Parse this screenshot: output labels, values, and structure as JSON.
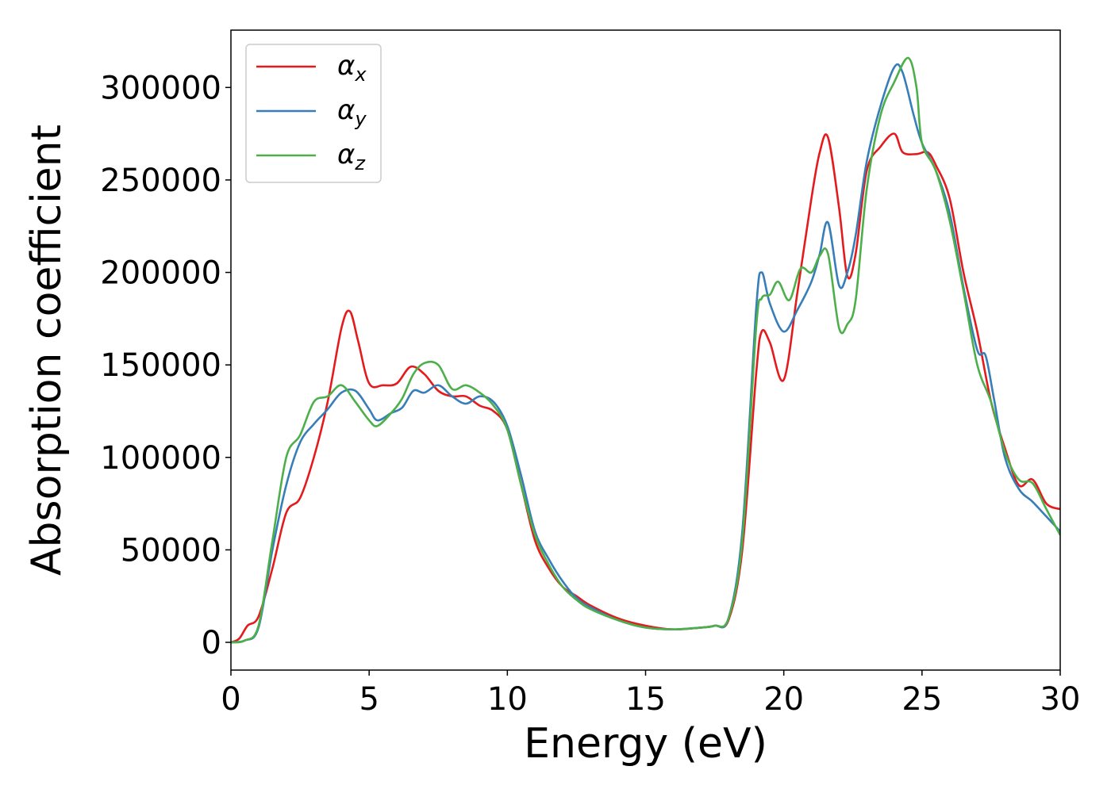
{
  "chart_data": {
    "type": "line",
    "xlabel": "Energy (eV)",
    "ylabel": "Absorption coefficient",
    "xlim": [
      0,
      30
    ],
    "ylim": [
      -15000,
      331000
    ],
    "xticks": [
      0,
      5,
      10,
      15,
      20,
      25,
      30
    ],
    "yticks": [
      0,
      50000,
      100000,
      150000,
      200000,
      250000,
      300000
    ],
    "xtick_labels": [
      "0",
      "5",
      "10",
      "15",
      "20",
      "25",
      "30"
    ],
    "ytick_labels": [
      "0",
      "50000",
      "100000",
      "150000",
      "200000",
      "250000",
      "300000"
    ],
    "grid": false,
    "legend_position": "top-left",
    "series": [
      {
        "name": "α_x",
        "symbol": "α",
        "subscript": "x",
        "color": "#e41a1c",
        "points": [
          [
            0,
            0
          ],
          [
            0.3,
            2000
          ],
          [
            0.6,
            9000
          ],
          [
            1,
            14000
          ],
          [
            1.5,
            40000
          ],
          [
            2,
            70000
          ],
          [
            2.5,
            78000
          ],
          [
            3,
            100000
          ],
          [
            3.5,
            130000
          ],
          [
            4,
            170000
          ],
          [
            4.3,
            179000
          ],
          [
            4.6,
            163000
          ],
          [
            5,
            140000
          ],
          [
            5.5,
            139000
          ],
          [
            6,
            140000
          ],
          [
            6.5,
            149000
          ],
          [
            7,
            145000
          ],
          [
            7.5,
            136000
          ],
          [
            8,
            133000
          ],
          [
            8.5,
            133000
          ],
          [
            9,
            128000
          ],
          [
            9.5,
            125000
          ],
          [
            10,
            115000
          ],
          [
            10.5,
            85000
          ],
          [
            11,
            55000
          ],
          [
            11.5,
            40000
          ],
          [
            12,
            30000
          ],
          [
            12.5,
            25000
          ],
          [
            13,
            20000
          ],
          [
            14,
            13000
          ],
          [
            15,
            9000
          ],
          [
            16,
            7000
          ],
          [
            17,
            8000
          ],
          [
            17.5,
            9000
          ],
          [
            18,
            12000
          ],
          [
            18.5,
            50000
          ],
          [
            19,
            145000
          ],
          [
            19.2,
            168000
          ],
          [
            19.5,
            162000
          ],
          [
            20,
            142000
          ],
          [
            20.5,
            190000
          ],
          [
            21,
            240000
          ],
          [
            21.3,
            265000
          ],
          [
            21.6,
            273000
          ],
          [
            22,
            235000
          ],
          [
            22.3,
            198000
          ],
          [
            22.6,
            210000
          ],
          [
            23,
            255000
          ],
          [
            23.5,
            268000
          ],
          [
            24,
            275000
          ],
          [
            24.3,
            265000
          ],
          [
            24.8,
            264000
          ],
          [
            25.2,
            265000
          ],
          [
            25.5,
            258000
          ],
          [
            26,
            240000
          ],
          [
            26.5,
            200000
          ],
          [
            27,
            168000
          ],
          [
            27.5,
            130000
          ],
          [
            28,
            105000
          ],
          [
            28.5,
            85000
          ],
          [
            29,
            88000
          ],
          [
            29.5,
            75000
          ],
          [
            30,
            72000
          ]
        ]
      },
      {
        "name": "α_y",
        "symbol": "α",
        "subscript": "y",
        "color": "#377eb8",
        "points": [
          [
            0,
            0
          ],
          [
            0.5,
            1000
          ],
          [
            1,
            8000
          ],
          [
            1.5,
            50000
          ],
          [
            2,
            85000
          ],
          [
            2.5,
            108000
          ],
          [
            3,
            118000
          ],
          [
            3.5,
            126000
          ],
          [
            4,
            135000
          ],
          [
            4.5,
            136000
          ],
          [
            5,
            126000
          ],
          [
            5.3,
            120000
          ],
          [
            5.8,
            124000
          ],
          [
            6.2,
            127000
          ],
          [
            6.6,
            136000
          ],
          [
            7,
            135000
          ],
          [
            7.5,
            139000
          ],
          [
            8,
            133000
          ],
          [
            8.5,
            129000
          ],
          [
            9,
            133000
          ],
          [
            9.5,
            130000
          ],
          [
            10,
            117000
          ],
          [
            10.5,
            90000
          ],
          [
            11,
            60000
          ],
          [
            11.5,
            45000
          ],
          [
            12,
            33000
          ],
          [
            12.5,
            24000
          ],
          [
            13,
            19000
          ],
          [
            14,
            12000
          ],
          [
            15,
            8000
          ],
          [
            16,
            7000
          ],
          [
            17,
            8000
          ],
          [
            17.5,
            9000
          ],
          [
            18,
            13000
          ],
          [
            18.5,
            60000
          ],
          [
            19,
            180000
          ],
          [
            19.2,
            200000
          ],
          [
            19.5,
            183000
          ],
          [
            20,
            168000
          ],
          [
            20.5,
            180000
          ],
          [
            21,
            195000
          ],
          [
            21.3,
            210000
          ],
          [
            21.6,
            227000
          ],
          [
            22,
            193000
          ],
          [
            22.3,
            200000
          ],
          [
            22.6,
            220000
          ],
          [
            23,
            260000
          ],
          [
            23.5,
            290000
          ],
          [
            24,
            311000
          ],
          [
            24.3,
            308000
          ],
          [
            24.7,
            285000
          ],
          [
            25,
            270000
          ],
          [
            25.5,
            255000
          ],
          [
            26,
            232000
          ],
          [
            26.5,
            192000
          ],
          [
            27,
            158000
          ],
          [
            27.3,
            155000
          ],
          [
            27.6,
            132000
          ],
          [
            28,
            100000
          ],
          [
            28.5,
            83000
          ],
          [
            29,
            76000
          ],
          [
            29.5,
            68000
          ],
          [
            30,
            60000
          ]
        ]
      },
      {
        "name": "α_z",
        "symbol": "α",
        "subscript": "z",
        "color": "#4daf4a",
        "points": [
          [
            0,
            0
          ],
          [
            0.5,
            1000
          ],
          [
            1,
            9000
          ],
          [
            1.5,
            55000
          ],
          [
            2,
            100000
          ],
          [
            2.5,
            112000
          ],
          [
            3,
            130000
          ],
          [
            3.5,
            133000
          ],
          [
            4,
            139000
          ],
          [
            4.5,
            130000
          ],
          [
            5,
            120000
          ],
          [
            5.3,
            117000
          ],
          [
            5.8,
            124000
          ],
          [
            6.2,
            132000
          ],
          [
            6.6,
            145000
          ],
          [
            7,
            151000
          ],
          [
            7.5,
            150000
          ],
          [
            8,
            137000
          ],
          [
            8.5,
            139000
          ],
          [
            9,
            135000
          ],
          [
            9.5,
            128000
          ],
          [
            10,
            115000
          ],
          [
            10.5,
            85000
          ],
          [
            11,
            58000
          ],
          [
            11.5,
            42000
          ],
          [
            12,
            30000
          ],
          [
            12.5,
            23000
          ],
          [
            13,
            18000
          ],
          [
            14,
            12000
          ],
          [
            15,
            8000
          ],
          [
            16,
            7000
          ],
          [
            17,
            8000
          ],
          [
            17.5,
            9000
          ],
          [
            18,
            13000
          ],
          [
            18.5,
            55000
          ],
          [
            19,
            170000
          ],
          [
            19.2,
            186000
          ],
          [
            19.5,
            188000
          ],
          [
            19.8,
            195000
          ],
          [
            20.2,
            185000
          ],
          [
            20.6,
            202000
          ],
          [
            21,
            200000
          ],
          [
            21.3,
            209000
          ],
          [
            21.6,
            210000
          ],
          [
            22,
            170000
          ],
          [
            22.3,
            172000
          ],
          [
            22.6,
            185000
          ],
          [
            23,
            245000
          ],
          [
            23.5,
            285000
          ],
          [
            24,
            303000
          ],
          [
            24.5,
            316000
          ],
          [
            24.8,
            300000
          ],
          [
            25,
            270000
          ],
          [
            25.5,
            255000
          ],
          [
            26,
            228000
          ],
          [
            26.5,
            190000
          ],
          [
            27,
            150000
          ],
          [
            27.5,
            130000
          ],
          [
            28,
            103000
          ],
          [
            28.5,
            88000
          ],
          [
            29,
            86000
          ],
          [
            29.5,
            72000
          ],
          [
            30,
            58000
          ]
        ]
      }
    ]
  }
}
